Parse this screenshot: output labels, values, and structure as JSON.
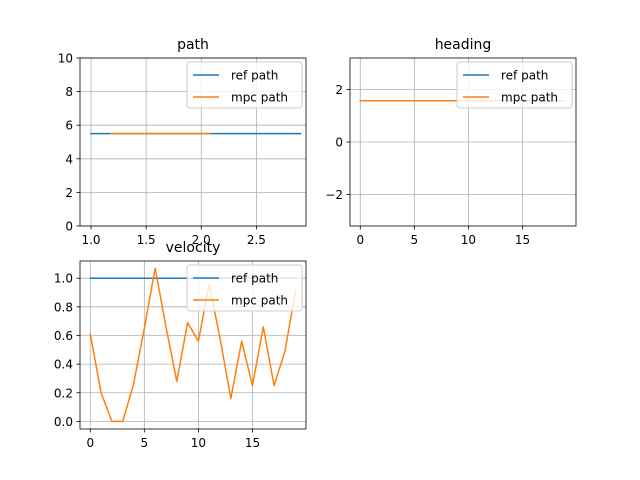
{
  "chart_data": [
    {
      "type": "line",
      "title": "path",
      "xlabel": "",
      "ylabel": "",
      "xlim": [
        0.9,
        2.95
      ],
      "ylim": [
        0,
        10
      ],
      "xticks": [
        1.0,
        1.5,
        2.0,
        2.5
      ],
      "xtick_labels": [
        "1.0",
        "1.5",
        "2.0",
        "2.5"
      ],
      "yticks": [
        0,
        2,
        4,
        6,
        8,
        10
      ],
      "ytick_labels": [
        "0",
        "2",
        "4",
        "6",
        "8",
        "10"
      ],
      "grid": true,
      "legend_position": "top-right",
      "series": [
        {
          "name": "ref path",
          "color": "#1f77b4",
          "x": [
            1.0,
            2.9
          ],
          "y": [
            5.5,
            5.5
          ]
        },
        {
          "name": "mpc path",
          "color": "#ff7f0e",
          "x": [
            1.18,
            2.08
          ],
          "y": [
            5.5,
            5.5
          ]
        }
      ]
    },
    {
      "type": "line",
      "title": "heading",
      "xlabel": "",
      "ylabel": "",
      "xlim": [
        -0.95,
        19.95
      ],
      "ylim": [
        -3.2,
        3.2
      ],
      "xticks": [
        0,
        5,
        10,
        15
      ],
      "xtick_labels": [
        "0",
        "5",
        "10",
        "15"
      ],
      "yticks": [
        -2,
        0,
        2
      ],
      "ytick_labels": [
        "−2",
        "0",
        "2"
      ],
      "grid": true,
      "legend_position": "top-right",
      "series": [
        {
          "name": "ref path",
          "color": "#1f77b4",
          "x": [
            0,
            19
          ],
          "y": [
            1.57,
            1.57
          ]
        },
        {
          "name": "mpc path",
          "color": "#ff7f0e",
          "x": [
            0,
            19
          ],
          "y": [
            1.57,
            1.57
          ]
        }
      ]
    },
    {
      "type": "line",
      "title": "velocity",
      "xlabel": "",
      "ylabel": "",
      "xlim": [
        -0.95,
        19.95
      ],
      "ylim": [
        -0.053,
        1.12
      ],
      "xticks": [
        0,
        5,
        10,
        15
      ],
      "xtick_labels": [
        "0",
        "5",
        "10",
        "15"
      ],
      "yticks": [
        0.0,
        0.2,
        0.4,
        0.6,
        0.8,
        1.0
      ],
      "ytick_labels": [
        "0.0",
        "0.2",
        "0.4",
        "0.6",
        "0.8",
        "1.0"
      ],
      "grid": true,
      "legend_position": "top-right",
      "series": [
        {
          "name": "ref path",
          "color": "#1f77b4",
          "x": [
            0,
            19
          ],
          "y": [
            1.0,
            1.0
          ]
        },
        {
          "name": "mpc path",
          "color": "#ff7f0e",
          "x": [
            0,
            1,
            2,
            3,
            4,
            5,
            6,
            7,
            8,
            9,
            10,
            11,
            12,
            13,
            14,
            15,
            16,
            17,
            18,
            19
          ],
          "y": [
            0.61,
            0.2,
            0.0,
            0.0,
            0.26,
            0.65,
            1.07,
            0.66,
            0.28,
            0.69,
            0.56,
            0.96,
            0.58,
            0.16,
            0.56,
            0.25,
            0.66,
            0.25,
            0.49,
            0.92
          ]
        }
      ]
    }
  ]
}
